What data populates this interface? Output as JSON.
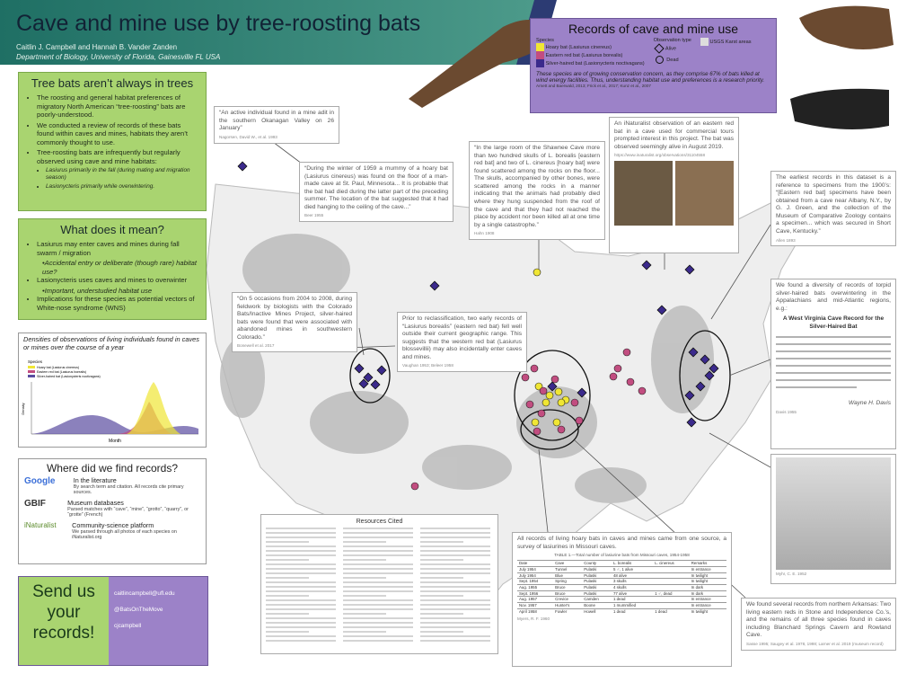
{
  "header": {
    "title": "Cave and mine use by tree-roosting bats",
    "authors": "Caitlin J. Campbell and Hannah B. Vander Zanden",
    "affiliation": "Department of Biology, University of Florida, Gainesville FL USA"
  },
  "legend": {
    "title": "Records of cave and mine use",
    "species_heading": "Species",
    "species": [
      "Hoary bat (Lasiurus cinereus)",
      "Eastern red bat (Lasiurus borealis)",
      "Silver-haired bat (Lasionycteris noctivagans)"
    ],
    "obs_heading": "Observation type",
    "obs": [
      "Alive",
      "Dead"
    ],
    "karst": "USGS Karst areas",
    "note": "These species are of growing conservation concern, as they comprise 67% of bats killed at wind energy facilities. Thus, understanding habitat use and preferences is a research priority.",
    "note_cite": "Arnett and Baerwald, 2013; Frick et al., 2017; Kunz et al., 2007"
  },
  "panel_trees": {
    "heading": "Tree bats aren’t always in trees",
    "bullets": [
      "The roosting and general habitat preferences of migratory North American “tree-roosting” bats are poorly-understood.",
      "We conducted a review of records of these bats found within caves and mines, habitats they aren’t commonly thought to use.",
      "Tree-roosting bats are infrequently but regularly observed using cave and mine habitats:"
    ],
    "sub_bullets": [
      "Lasiurus primarily in the fall (during mating and migration season)",
      "Lasionycteris primarily while overwintering."
    ]
  },
  "panel_meaning": {
    "heading": "What does it mean?",
    "items": [
      "Lasiurus may enter caves and mines during fall swarm / migration",
      "•Accidental entry or deliberate (though rare) habitat use?",
      "Lasionycteris uses caves and mines to overwinter",
      "•Important, understudied habitat use",
      "Implications for these species as potential vectors of White-nose syndrome (WNS)"
    ]
  },
  "density": {
    "title": "Densities of observations of living individuals found in caves or mines over the course of a year",
    "legend_title": "Species",
    "legend": [
      "Hoary bat (Lasiurus cinereus)",
      "Eastern red bat (Lasiurus borealis)",
      "Silver-haired bat (Lasionycteris noctivagans)"
    ],
    "x_label": "Month",
    "y_label": "Density"
  },
  "where": {
    "heading": "Where did we find records?",
    "logos": [
      "Google",
      "GBIF",
      "iNaturalist"
    ],
    "items": [
      {
        "heading": "In the literature",
        "text": "By search term and citation. All records cite primary sources."
      },
      {
        "heading": "Museum databases",
        "text": "Parsed matches with “cave”, “mine”, “grotto”, “quarry”, or “grotte” (French)"
      },
      {
        "heading": "Community-science platform",
        "text": "We parsed through all photos of each species on iNaturalist.org"
      }
    ]
  },
  "send": {
    "heading": "Send us your records!",
    "contacts": [
      "caitlincampbell@ufl.edu",
      "@BatsOnTheMove",
      "cjcampbell"
    ]
  },
  "references": {
    "heading": "Resources Cited"
  },
  "quotes": [
    {
      "text": "“An active individual found in a mine adit in the southern Okanagan Valley on 26 January”",
      "cite": "Nagorsen, David W., et al. 1993"
    },
    {
      "text": "“During the winter of 1959 a mummy of a hoary bat (Lasiurus cinereus) was found on the floor of a man-made cave at St. Paul, Minnesota... It is probable that the bat had died during the latter part of the preceding summer. The location of the bat suggested that it had died hanging to the ceiling of the cave...”",
      "cite": "Beer 1955"
    },
    {
      "text": "“In the large room of the Shawnee Cave more than two hundred skulls of L. borealis [eastern red bat] and two of L. cinereus [hoary bat] were found scattered among the rocks on the floor... The skulls, accompanied by other bones, were scattered among the rocks in a manner indicating that the animals had probably died where they hung suspended from the roof of the cave and that they had not reached the place by accident nor been killed all at one time by a single catastrophe.”",
      "cite": "Hahn 1908"
    },
    {
      "text": "An iNaturalist observation of an eastern red bat in a cave used for commercial tours prompted interest in this project. The bat was observed seemingly alive in August 2019.",
      "cite": "https://www.inaturalist.org/observations/31104558"
    },
    {
      "text": "The earliest records in this dataset is a reference to specimens from the 1900’s: “[Eastern red bat] specimens have been obtained from a cave near Albany, N.Y., by G. J. Green, and the collection of the Museum of Comparative Zoology contains a specimen... which was secured in Short Cave, Kentucky.”",
      "cite": "Allen 1893"
    },
    {
      "text": "“On 5 occasions from 2004 to 2008, during fieldwork by biologists with the Colorado Bats/Inactive Mines Project, silver-haired bats were found that were associated with abandoned mines in southwestern Colorado.”",
      "cite": "Bonewell et al. 2017"
    },
    {
      "text": "Prior to reclassification, two early records of “Lasiurus borealis” (eastern red bat) fell well outside their current geographic range. This suggests that the western red bat (Lasiurus blossevillii) may also incidentally enter caves and mines.",
      "cite": "Vaughan 1953; Beleer 1958"
    },
    {
      "text": "We found a diversity of records of torpid silver-haired bats overwintering in the Appalachians and mid-Atlantic regions, e.g.:",
      "cite": "Davis 1955"
    },
    {
      "text": "We found several records from northern Arkansas: Two living eastern reds in Stone and Independence Co.’s, and the remains of all three species found in caves including Blanchard Springs Cavern and Rowland Cave.",
      "cite": "Sasse 1995; Saugey et al. 1978, 1998; Larner et al. 2019 (museum record)"
    },
    {
      "text": "All records of living hoary bats in caves and mines came from one source, a survey of lasiurines in Missouri caves.",
      "cite": "Myers, R. F. 1960"
    }
  ],
  "clipping": {
    "title": "A West Virginia Cave Record for the Silver-Haired Bat",
    "signature": "Wayne H. Davis"
  },
  "figure": {
    "cite": "Myhr, C. E. 1952"
  },
  "missouri_table": {
    "caption": "TABLE 1.—Total number of lasiurine bats from Missouri caves, 1954-1958",
    "header": [
      "Date",
      "Cave",
      "County",
      "L. borealis",
      "L. cinereus",
      "Remarks"
    ],
    "rows": [
      [
        "July 1954",
        "Tunnel",
        "Pulaski",
        "5 ♂, 1 alive",
        "",
        "In entrance"
      ],
      [
        "July 1954",
        "Blue",
        "Pulaski",
        "48 alive",
        "",
        "In twilight"
      ],
      [
        "Sept. 1954",
        "Spring",
        "Pulaski",
        "3 skulls",
        "",
        "In twilight"
      ],
      [
        "Aug. 1955",
        "Bruce",
        "Pulaski",
        "4 skulls",
        "",
        "In dark"
      ],
      [
        "Sept. 1956",
        "Bruce",
        "Pulaski",
        "77 alive",
        "1 ♂, dead",
        "In dark"
      ],
      [
        "Aug. 1957",
        "Crevice",
        "Camden",
        "1 dead",
        "",
        "In entrance"
      ],
      [
        "Nov. 1957",
        "Hunter's",
        "Boone",
        "1 mummified",
        "",
        "In entrance"
      ],
      [
        "April 1958",
        "Fowler",
        "Howell",
        "1 dead",
        "1 dead",
        "In twilight"
      ]
    ]
  }
}
